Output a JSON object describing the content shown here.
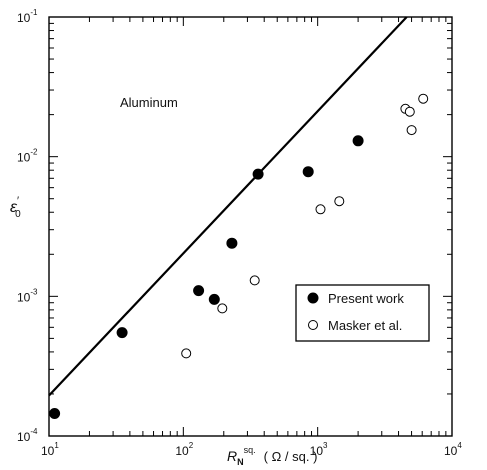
{
  "chart_data": {
    "type": "scatter",
    "xscale": "log",
    "yscale": "log",
    "xlim": [
      10,
      10000
    ],
    "ylim": [
      0.0001,
      0.1
    ],
    "x_ticks": [
      {
        "base": "10",
        "exp": "1",
        "value": 10
      },
      {
        "base": "10",
        "exp": "2",
        "value": 100
      },
      {
        "base": "10",
        "exp": "3",
        "value": 1000
      },
      {
        "base": "10",
        "exp": "4",
        "value": 10000
      }
    ],
    "y_ticks": [
      {
        "base": "10",
        "exp": "-4",
        "value": 0.0001
      },
      {
        "base": "10",
        "exp": "-3",
        "value": 0.001
      },
      {
        "base": "10",
        "exp": "-2",
        "value": 0.01
      },
      {
        "base": "10",
        "exp": "-1",
        "value": 0.1
      }
    ],
    "xlabel": {
      "symbol": "R",
      "subscript": "N",
      "superscript": "sq.",
      "units": "( Ω / sq. )"
    },
    "ylabel": {
      "symbol": "ε",
      "prime": "′",
      "subscript": "0"
    },
    "annotation": "Aluminum",
    "legend": {
      "position": "lower-right",
      "entries": [
        {
          "label": "Present work",
          "marker": "filled-circle"
        },
        {
          "label": "Masker et al.",
          "marker": "open-circle"
        }
      ]
    },
    "series": [
      {
        "name": "Present work",
        "marker": "filled-circle",
        "points": [
          {
            "x": 11,
            "y": 0.000145
          },
          {
            "x": 35,
            "y": 0.00055
          },
          {
            "x": 130,
            "y": 0.0011
          },
          {
            "x": 170,
            "y": 0.00095
          },
          {
            "x": 230,
            "y": 0.0024
          },
          {
            "x": 360,
            "y": 0.0075
          },
          {
            "x": 850,
            "y": 0.0078
          },
          {
            "x": 2000,
            "y": 0.013
          }
        ]
      },
      {
        "name": "Masker et al.",
        "marker": "open-circle",
        "points": [
          {
            "x": 105,
            "y": 0.00039
          },
          {
            "x": 195,
            "y": 0.00082
          },
          {
            "x": 340,
            "y": 0.0013
          },
          {
            "x": 1050,
            "y": 0.0042
          },
          {
            "x": 1450,
            "y": 0.0048
          },
          {
            "x": 4500,
            "y": 0.022
          },
          {
            "x": 4850,
            "y": 0.021
          },
          {
            "x": 5000,
            "y": 0.0155
          },
          {
            "x": 6100,
            "y": 0.026
          }
        ]
      }
    ],
    "lines": [
      {
        "points": [
          {
            "x": 10,
            "y": 0.000195
          },
          {
            "x": 4600,
            "y": 0.1
          }
        ]
      }
    ]
  }
}
